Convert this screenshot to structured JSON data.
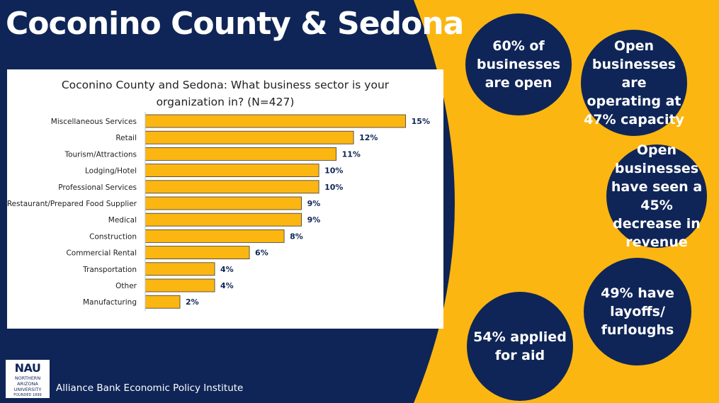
{
  "slide": {
    "title": "Coconino County & Sedona",
    "footer": "Alliance Bank Economic Policy Institute",
    "colors": {
      "navy": "#0f2557",
      "gold": "#fbb612",
      "bar": "#fbb612",
      "bar_border": "#3a3a3a",
      "label": "#0f2557"
    }
  },
  "stats": [
    {
      "text": "60% of businesses are open"
    },
    {
      "text": "Open businesses are operating at 47% capacity"
    },
    {
      "text": "Open businesses have seen a 45% decrease in revenue"
    },
    {
      "text": "49% have layoffs/ furloughs"
    },
    {
      "text": "54% applied for aid"
    }
  ],
  "logo": {
    "main": "NAU",
    "line1": "NORTHERN",
    "line2": "ARIZONA",
    "line3": "UNIVERSITY",
    "line4": "FOUNDED 1899"
  },
  "chart_data": {
    "type": "bar",
    "orientation": "horizontal",
    "title": "Coconino County and Sedona: What business sector is your organization in? (N=427)",
    "title_lines": [
      "Coconino County and Sedona: What business sector is your",
      "organization in? (N=427)"
    ],
    "categories": [
      "Miscellaneous Services",
      "Retail",
      "Tourism/Attractions",
      "Lodging/Hotel",
      "Professional Services",
      "Restaurant/Prepared Food Supplier",
      "Medical",
      "Construction",
      "Commercial Rental",
      "Transportation",
      "Other",
      "Manufacturing"
    ],
    "values": [
      15,
      12,
      11,
      10,
      10,
      9,
      9,
      8,
      6,
      4,
      4,
      2
    ],
    "data_labels": [
      "15%",
      "12%",
      "11%",
      "10%",
      "10%",
      "9%",
      "9%",
      "8%",
      "6%",
      "4%",
      "4%",
      "2%"
    ],
    "unit": "%",
    "xlim": [
      0,
      15.3
    ],
    "xlabel": "",
    "ylabel": "",
    "grid": false
  }
}
